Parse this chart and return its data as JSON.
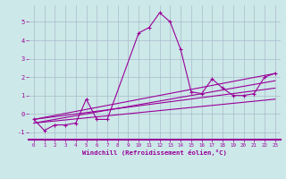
{
  "xlabel": "Windchill (Refroidissement éolien,°C)",
  "background_color": "#cce8e8",
  "plot_bg_color": "#cce8e8",
  "line_color": "#990099",
  "grid_color": "#aabbcc",
  "xlim": [
    -0.5,
    23.5
  ],
  "ylim": [
    -1.4,
    5.9
  ],
  "yticks": [
    -1,
    0,
    1,
    2,
    3,
    4,
    5
  ],
  "xticks": [
    0,
    1,
    2,
    3,
    4,
    5,
    6,
    7,
    8,
    9,
    10,
    11,
    12,
    13,
    14,
    15,
    16,
    17,
    18,
    19,
    20,
    21,
    22,
    23
  ],
  "xtick_labels": [
    "0",
    "1",
    "2",
    "3",
    "4",
    "5",
    "6",
    "7",
    "8",
    "9",
    "10",
    "11",
    "12",
    "13",
    "14",
    "15",
    "16",
    "17",
    "18",
    "19",
    "20",
    "21",
    "22",
    "23"
  ],
  "main_x": [
    0,
    1,
    2,
    3,
    4,
    5,
    6,
    7,
    10,
    11,
    12,
    13,
    14,
    15,
    16,
    17,
    18,
    19,
    20,
    21,
    22,
    23
  ],
  "main_y": [
    -0.3,
    -0.9,
    -0.6,
    -0.6,
    -0.5,
    0.8,
    -0.3,
    -0.3,
    4.4,
    4.7,
    5.5,
    5.0,
    3.5,
    1.2,
    1.1,
    1.9,
    1.4,
    1.0,
    1.0,
    1.1,
    2.0,
    2.2
  ],
  "line2_x": [
    0,
    23
  ],
  "line2_y": [
    -0.5,
    1.8
  ],
  "line3_x": [
    0,
    23
  ],
  "line3_y": [
    -0.3,
    1.4
  ],
  "line4_x": [
    0,
    23
  ],
  "line4_y": [
    -0.5,
    0.8
  ],
  "line5_x": [
    0,
    23
  ],
  "line5_y": [
    -0.3,
    2.2
  ]
}
